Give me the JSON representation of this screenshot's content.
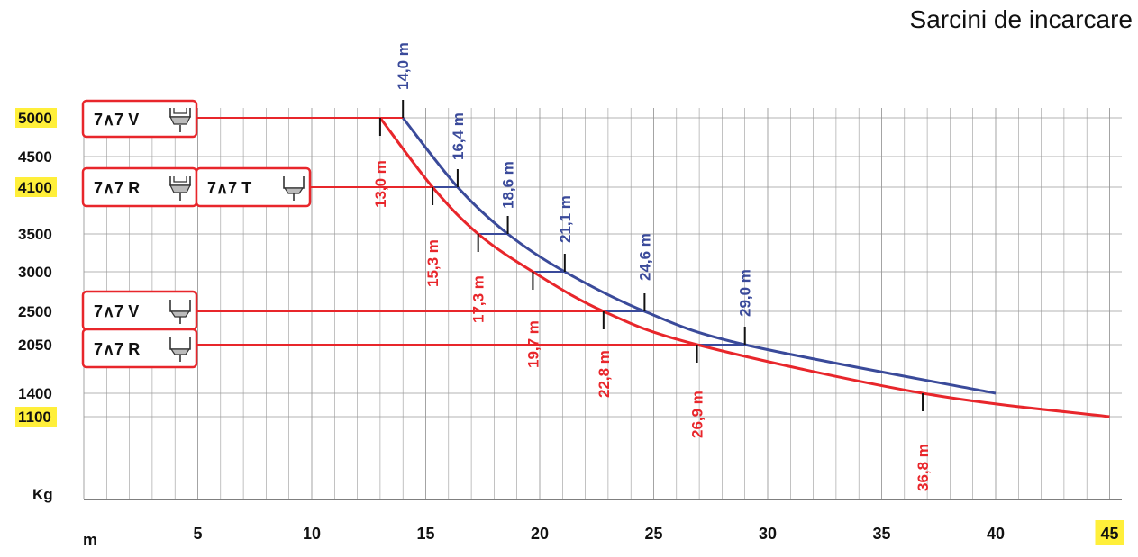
{
  "title": "Sarcini de incarcare",
  "colors": {
    "outer_curve": "#3a4a9a",
    "inner_curve": "#e8262b",
    "highlight": "#ffef3a",
    "grid": "#9a9a9a"
  },
  "chart_data": {
    "type": "line",
    "title": "Sarcini de incarcare",
    "xlabel": "m",
    "ylabel": "Kg",
    "xlim": [
      0,
      45
    ],
    "x_ticks": [
      "5",
      "10",
      "15",
      "20",
      "25",
      "30",
      "35",
      "40",
      "45"
    ],
    "y_ticks": [
      "5000",
      "4500",
      "4100",
      "3500",
      "3000",
      "2500",
      "2050",
      "1400",
      "1100"
    ],
    "highlighted_ticks": [
      "5000",
      "4100",
      "1100",
      "45"
    ],
    "grid": true,
    "series": [
      {
        "color": "#3a4a9a",
        "x": [
          14.0,
          16.4,
          18.6,
          21.1,
          24.6,
          29.0,
          40.0
        ],
        "y": [
          5000,
          4100,
          3500,
          3000,
          2500,
          2050,
          1400
        ]
      },
      {
        "color": "#e8262b",
        "x": [
          13.0,
          15.3,
          17.3,
          19.7,
          22.8,
          26.9,
          36.8,
          45.0
        ],
        "y": [
          5000,
          4100,
          3500,
          3000,
          2500,
          2050,
          1400,
          1100
        ]
      }
    ],
    "annotations_outer": [
      "14,0 m",
      "16,4 m",
      "18,6 m",
      "21,1 m",
      "24,6 m",
      "29,0 m"
    ],
    "annotations_inner": [
      "13,0 m",
      "15,3 m",
      "17,3 m",
      "19,7 m",
      "22,8 m",
      "26,9 m",
      "36,8 m"
    ],
    "configs": [
      {
        "label": "7∧7 V",
        "icon": "double-tire-icon"
      },
      {
        "label": "7∧7 R",
        "icon": "double-tire-icon"
      },
      {
        "label": "7∧7 T",
        "icon": "single-tire-icon"
      },
      {
        "label": "7∧7 V",
        "icon": "single-tire-icon"
      },
      {
        "label": "7∧7 R",
        "icon": "single-tire-icon"
      }
    ]
  }
}
